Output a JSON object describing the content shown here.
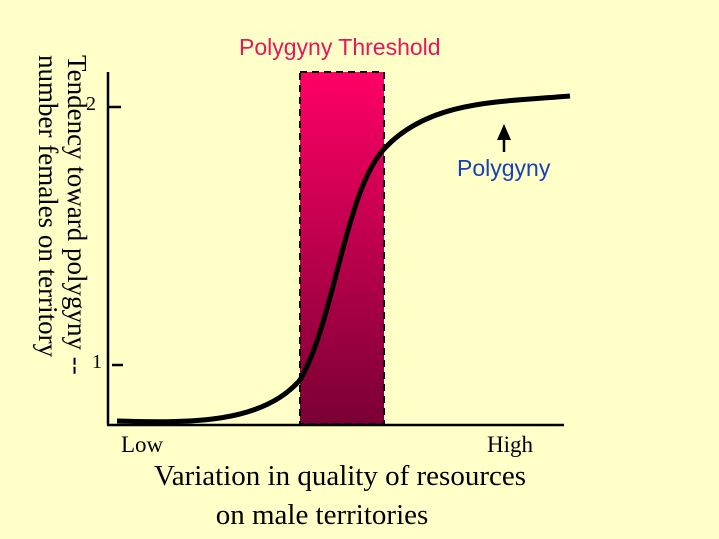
{
  "threshold_label": "Polygyny Threshold",
  "polygyny_label": "Polygyny",
  "y_axis": {
    "label_line1": "Tendency toward polygyny --",
    "label_line2": "number females on territory",
    "tick_high": "2",
    "tick_low": "1"
  },
  "x_axis": {
    "low": "Low",
    "high": "High",
    "label_line1": "Variation in quality of resources",
    "label_line2": "on male territories"
  },
  "colors": {
    "background": "#ffffc8",
    "threshold_top": "#ff0066",
    "threshold_bottom": "#7a0033",
    "threshold_title": "#e8175d",
    "polygyny_text": "#1a3fb8"
  }
}
